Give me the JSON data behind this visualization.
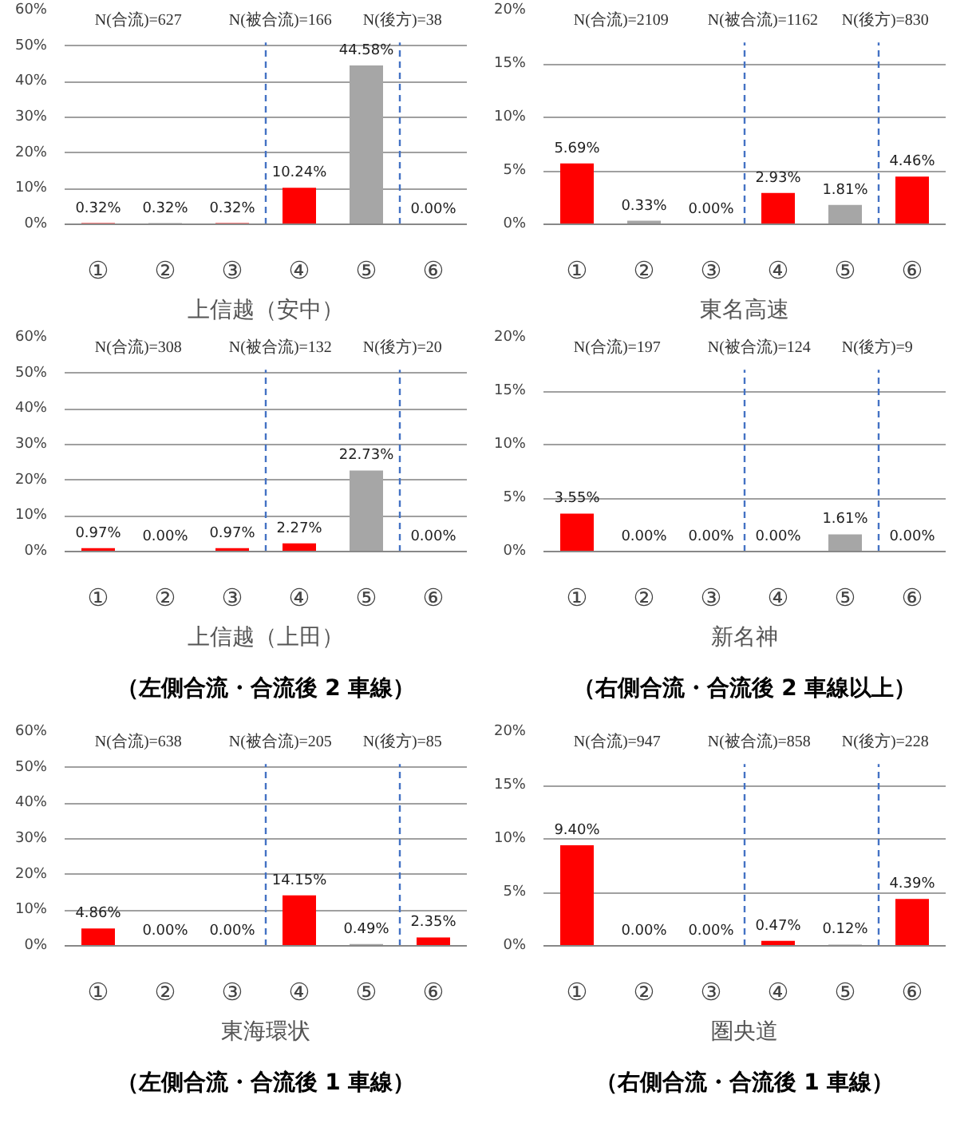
{
  "chart_data": [
    {
      "type": "bar",
      "xlabel": "上信越（安中）",
      "categories": [
        "①",
        "②",
        "③",
        "④",
        "⑤",
        "⑥"
      ],
      "ylim": [
        0,
        60
      ],
      "yticks": [
        {
          "value": 0,
          "label": "0%"
        },
        {
          "value": 10,
          "label": "10%"
        },
        {
          "value": 20,
          "label": "20%"
        },
        {
          "value": 30,
          "label": "30%"
        },
        {
          "value": 40,
          "label": "40%"
        },
        {
          "value": 50,
          "label": "50%"
        },
        {
          "value": 60,
          "label": "60%"
        }
      ],
      "values": [
        0.32,
        0.32,
        0.32,
        10.24,
        44.58,
        0.0
      ],
      "value_labels": [
        "0.32%",
        "0.32%",
        "0.32%",
        "10.24%",
        "44.58%",
        "0.00%"
      ],
      "colors": [
        "#ff0000",
        "#a6a6a6",
        "#ff0000",
        "#ff0000",
        "#a6a6a6",
        "#ff0000"
      ],
      "annotations": [
        "N(合流)=627",
        "N(被合流)=166",
        "N(後方)=38"
      ],
      "grid": "y"
    },
    {
      "type": "bar",
      "xlabel": "東名高速",
      "categories": [
        "①",
        "②",
        "③",
        "④",
        "⑤",
        "⑥"
      ],
      "ylim": [
        0,
        20
      ],
      "yticks": [
        {
          "value": 0,
          "label": "0%"
        },
        {
          "value": 5,
          "label": "5%"
        },
        {
          "value": 10,
          "label": "10%"
        },
        {
          "value": 15,
          "label": "15%"
        },
        {
          "value": 20,
          "label": "20%"
        }
      ],
      "values": [
        5.69,
        0.33,
        0.0,
        2.93,
        1.81,
        4.46
      ],
      "value_labels": [
        "5.69%",
        "0.33%",
        "0.00%",
        "2.93%",
        "1.81%",
        "4.46%"
      ],
      "colors": [
        "#ff0000",
        "#a6a6a6",
        "#ff0000",
        "#ff0000",
        "#a6a6a6",
        "#ff0000"
      ],
      "annotations": [
        "N(合流)=2109",
        "N(被合流)=1162",
        "N(後方)=830"
      ],
      "grid": "y"
    },
    {
      "type": "bar",
      "xlabel": "上信越（上田）",
      "categories": [
        "①",
        "②",
        "③",
        "④",
        "⑤",
        "⑥"
      ],
      "ylim": [
        0,
        60
      ],
      "yticks": [
        {
          "value": 0,
          "label": "0%"
        },
        {
          "value": 10,
          "label": "10%"
        },
        {
          "value": 20,
          "label": "20%"
        },
        {
          "value": 30,
          "label": "30%"
        },
        {
          "value": 40,
          "label": "40%"
        },
        {
          "value": 50,
          "label": "50%"
        },
        {
          "value": 60,
          "label": "60%"
        }
      ],
      "values": [
        0.97,
        0.0,
        0.97,
        2.27,
        22.73,
        0.0
      ],
      "value_labels": [
        "0.97%",
        "0.00%",
        "0.97%",
        "2.27%",
        "22.73%",
        "0.00%"
      ],
      "colors": [
        "#ff0000",
        "#a6a6a6",
        "#ff0000",
        "#ff0000",
        "#a6a6a6",
        "#ff0000"
      ],
      "annotations": [
        "N(合流)=308",
        "N(被合流)=132",
        "N(後方)=20"
      ],
      "grid": "y"
    },
    {
      "type": "bar",
      "xlabel": "新名神",
      "categories": [
        "①",
        "②",
        "③",
        "④",
        "⑤",
        "⑥"
      ],
      "ylim": [
        0,
        20
      ],
      "yticks": [
        {
          "value": 0,
          "label": "0%"
        },
        {
          "value": 5,
          "label": "5%"
        },
        {
          "value": 10,
          "label": "10%"
        },
        {
          "value": 15,
          "label": "15%"
        },
        {
          "value": 20,
          "label": "20%"
        }
      ],
      "values": [
        3.55,
        0.0,
        0.0,
        0.0,
        1.61,
        0.0
      ],
      "value_labels": [
        "3.55%",
        "0.00%",
        "0.00%",
        "0.00%",
        "1.61%",
        "0.00%"
      ],
      "colors": [
        "#ff0000",
        "#a6a6a6",
        "#ff0000",
        "#ff0000",
        "#a6a6a6",
        "#ff0000"
      ],
      "annotations": [
        "N(合流)=197",
        "N(被合流)=124",
        "N(後方)=9"
      ],
      "grid": "y"
    },
    {
      "type": "other",
      "title": "（左側合流・合流後 2 車線）"
    },
    {
      "type": "other",
      "title": "（右側合流・合流後 2 車線以上）"
    },
    {
      "type": "bar",
      "xlabel": "東海環状",
      "categories": [
        "①",
        "②",
        "③",
        "④",
        "⑤",
        "⑥"
      ],
      "ylim": [
        0,
        60
      ],
      "yticks": [
        {
          "value": 0,
          "label": "0%"
        },
        {
          "value": 10,
          "label": "10%"
        },
        {
          "value": 20,
          "label": "20%"
        },
        {
          "value": 30,
          "label": "30%"
        },
        {
          "value": 40,
          "label": "40%"
        },
        {
          "value": 50,
          "label": "50%"
        },
        {
          "value": 60,
          "label": "60%"
        }
      ],
      "values": [
        4.86,
        0.0,
        0.0,
        14.15,
        0.49,
        2.35
      ],
      "value_labels": [
        "4.86%",
        "0.00%",
        "0.00%",
        "14.15%",
        "0.49%",
        "2.35%"
      ],
      "colors": [
        "#ff0000",
        "#a6a6a6",
        "#ff0000",
        "#ff0000",
        "#a6a6a6",
        "#ff0000"
      ],
      "annotations": [
        "N(合流)=638",
        "N(被合流)=205",
        "N(後方)=85"
      ],
      "grid": "y"
    },
    {
      "type": "bar",
      "xlabel": "圏央道",
      "categories": [
        "①",
        "②",
        "③",
        "④",
        "⑤",
        "⑥"
      ],
      "ylim": [
        0,
        20
      ],
      "yticks": [
        {
          "value": 0,
          "label": "0%"
        },
        {
          "value": 5,
          "label": "5%"
        },
        {
          "value": 10,
          "label": "10%"
        },
        {
          "value": 15,
          "label": "15%"
        },
        {
          "value": 20,
          "label": "20%"
        }
      ],
      "values": [
        9.4,
        0.0,
        0.0,
        0.47,
        0.12,
        4.39
      ],
      "value_labels": [
        "9.40%",
        "0.00%",
        "0.00%",
        "0.47%",
        "0.12%",
        "4.39%"
      ],
      "colors": [
        "#ff0000",
        "#a6a6a6",
        "#ff0000",
        "#ff0000",
        "#a6a6a6",
        "#ff0000"
      ],
      "annotations": [
        "N(合流)=947",
        "N(被合流)=858",
        "N(後方)=228"
      ],
      "grid": "y"
    },
    {
      "type": "other",
      "title": "（左側合流・合流後 1 車線）"
    },
    {
      "type": "other",
      "title": "（右側合流・合流後 1 車線）"
    }
  ]
}
